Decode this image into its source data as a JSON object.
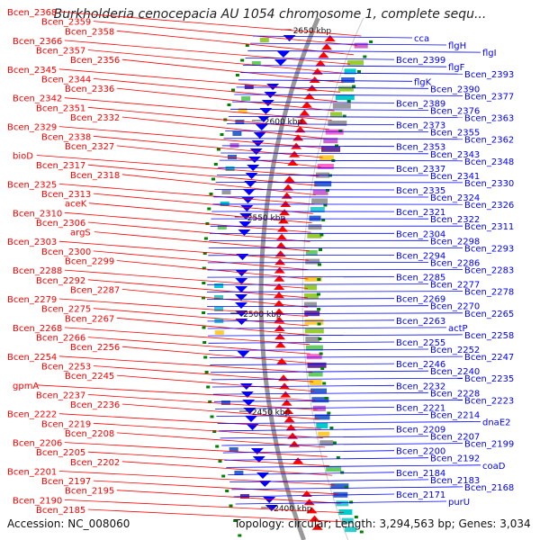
{
  "title": "Burkholderia cenocepacia AU 1054 chromosome 1, complete sequ...",
  "accession": "Accession: NC_008060",
  "topology": "Topology: circular; Length: 3,294,563 bp; Genes: 3,034",
  "colors": {
    "forward": "#ff0000",
    "reverse": "#0000ff",
    "tick": "#008000",
    "backbone": "#999999"
  },
  "ticks": [
    "2650 kbp",
    "2600 kbp",
    "2550 kbp",
    "2500 kbp",
    "2450 kbp",
    "2400 kbp"
  ],
  "left_labels": [
    "Bcen_2368",
    "Bcen_2359",
    "Bcen_2358",
    "Bcen_2366",
    "Bcen_2357",
    "Bcen_2356",
    "Bcen_2345",
    "Bcen_2344",
    "Bcen_2336",
    "Bcen_2342",
    "Bcen_2351",
    "Bcen_2332",
    "Bcen_2329",
    "Bcen_2338",
    "Bcen_2327",
    "bioD",
    "Bcen_2317",
    "Bcen_2318",
    "Bcen_2325",
    "Bcen_2313",
    "aceK",
    "Bcen_2310",
    "Bcen_2306",
    "argS",
    "Bcen_2303",
    "Bcen_2300",
    "Bcen_2299",
    "Bcen_2288",
    "Bcen_2292",
    "Bcen_2287",
    "Bcen_2279",
    "Bcen_2275",
    "Bcen_2267",
    "Bcen_2268",
    "Bcen_2266",
    "Bcen_2256",
    "Bcen_2254",
    "Bcen_2253",
    "Bcen_2245",
    "gpmA",
    "Bcen_2237",
    "Bcen_2236",
    "Bcen_2222",
    "Bcen_2219",
    "Bcen_2208",
    "Bcen_2206",
    "Bcen_2205",
    "Bcen_2202",
    "Bcen_2201",
    "Bcen_2197",
    "Bcen_2195",
    "Bcen_2190",
    "Bcen_2185"
  ],
  "right_labels": [
    "cca",
    "flgH",
    "flgI",
    "Bcen_2399",
    "flgF",
    "Bcen_2393",
    "flgK",
    "Bcen_2390",
    "Bcen_2377",
    "Bcen_2389",
    "Bcen_2376",
    "Bcen_2363",
    "Bcen_2373",
    "Bcen_2355",
    "Bcen_2362",
    "Bcen_2353",
    "Bcen_2343",
    "Bcen_2348",
    "Bcen_2337",
    "Bcen_2341",
    "Bcen_2330",
    "Bcen_2335",
    "Bcen_2324",
    "Bcen_2326",
    "Bcen_2321",
    "Bcen_2322",
    "Bcen_2311",
    "Bcen_2304",
    "Bcen_2298",
    "Bcen_2293",
    "Bcen_2294",
    "Bcen_2286",
    "Bcen_2283",
    "Bcen_2285",
    "Bcen_2277",
    "Bcen_2278",
    "Bcen_2269",
    "Bcen_2270",
    "Bcen_2265",
    "Bcen_2263",
    "actP",
    "Bcen_2258",
    "Bcen_2255",
    "Bcen_2252",
    "Bcen_2247",
    "Bcen_2246",
    "Bcen_2240",
    "Bcen_2235",
    "Bcen_2232",
    "Bcen_2228",
    "Bcen_2223",
    "Bcen_2221",
    "Bcen_2214",
    "dnaE2",
    "Bcen_2209",
    "Bcen_2207",
    "Bcen_2199",
    "Bcen_2200",
    "Bcen_2192",
    "coaD",
    "Bcen_2184",
    "Bcen_2183",
    "Bcen_2168",
    "Bcen_2171",
    "purU"
  ]
}
